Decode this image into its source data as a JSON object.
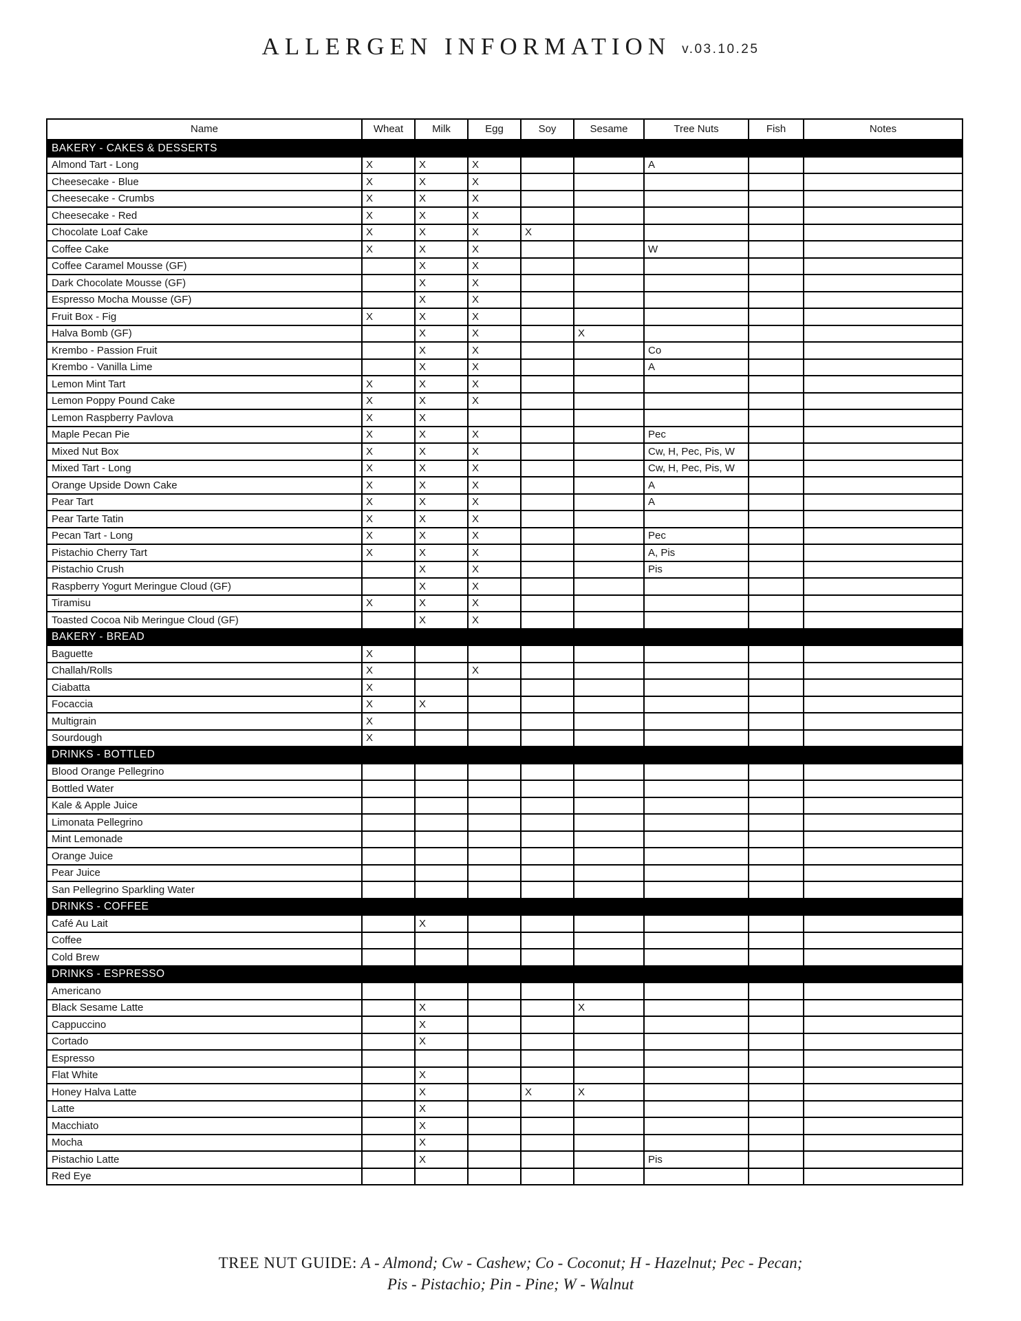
{
  "title": {
    "main": "ALLERGEN INFORMATION",
    "version": "v.03.10.25"
  },
  "table": {
    "columns": [
      "Name",
      "Wheat",
      "Milk",
      "Egg",
      "Soy",
      "Sesame",
      "Tree Nuts",
      "Fish",
      "Notes"
    ],
    "sections": [
      {
        "label": "BAKERY - CAKES & DESSERTS",
        "rows": [
          [
            "Almond Tart - Long",
            "X",
            "X",
            "X",
            "",
            "",
            "A",
            "",
            ""
          ],
          [
            "Cheesecake - Blue",
            "X",
            "X",
            "X",
            "",
            "",
            "",
            "",
            ""
          ],
          [
            "Cheesecake - Crumbs",
            "X",
            "X",
            "X",
            "",
            "",
            "",
            "",
            ""
          ],
          [
            "Cheesecake - Red",
            "X",
            "X",
            "X",
            "",
            "",
            "",
            "",
            ""
          ],
          [
            "Chocolate Loaf Cake",
            "X",
            "X",
            "X",
            "X",
            "",
            "",
            "",
            ""
          ],
          [
            "Coffee Cake",
            "X",
            "X",
            "X",
            "",
            "",
            "W",
            "",
            ""
          ],
          [
            "Coffee Caramel Mousse (GF)",
            "",
            "X",
            "X",
            "",
            "",
            "",
            "",
            ""
          ],
          [
            "Dark Chocolate Mousse (GF)",
            "",
            "X",
            "X",
            "",
            "",
            "",
            "",
            ""
          ],
          [
            "Espresso Mocha Mousse (GF)",
            "",
            "X",
            "X",
            "",
            "",
            "",
            "",
            ""
          ],
          [
            "Fruit Box - Fig",
            "X",
            "X",
            "X",
            "",
            "",
            "",
            "",
            ""
          ],
          [
            "Halva Bomb (GF)",
            "",
            "X",
            "X",
            "",
            "X",
            "",
            "",
            ""
          ],
          [
            "Krembo - Passion Fruit",
            "",
            "X",
            "X",
            "",
            "",
            "Co",
            "",
            ""
          ],
          [
            "Krembo - Vanilla Lime",
            "",
            "X",
            "X",
            "",
            "",
            "A",
            "",
            ""
          ],
          [
            "Lemon Mint Tart",
            "X",
            "X",
            "X",
            "",
            "",
            "",
            "",
            ""
          ],
          [
            "Lemon Poppy Pound Cake",
            "X",
            "X",
            "X",
            "",
            "",
            "",
            "",
            ""
          ],
          [
            "Lemon Raspberry Pavlova",
            "X",
            "X",
            "",
            "",
            "",
            "",
            "",
            ""
          ],
          [
            "Maple Pecan Pie",
            "X",
            "X",
            "X",
            "",
            "",
            "Pec",
            "",
            ""
          ],
          [
            "Mixed Nut Box",
            "X",
            "X",
            "X",
            "",
            "",
            "Cw, H, Pec, Pis, W",
            "",
            ""
          ],
          [
            "Mixed Tart - Long",
            "X",
            "X",
            "X",
            "",
            "",
            "Cw, H, Pec, Pis, W",
            "",
            ""
          ],
          [
            "Orange Upside Down Cake",
            "X",
            "X",
            "X",
            "",
            "",
            "A",
            "",
            ""
          ],
          [
            "Pear Tart",
            "X",
            "X",
            "X",
            "",
            "",
            "A",
            "",
            ""
          ],
          [
            "Pear Tarte Tatin",
            "X",
            "X",
            "X",
            "",
            "",
            "",
            "",
            ""
          ],
          [
            "Pecan Tart - Long",
            "X",
            "X",
            "X",
            "",
            "",
            "Pec",
            "",
            ""
          ],
          [
            "Pistachio Cherry Tart",
            "X",
            "X",
            "X",
            "",
            "",
            "A, Pis",
            "",
            ""
          ],
          [
            "Pistachio Crush",
            "",
            "X",
            "X",
            "",
            "",
            "Pis",
            "",
            ""
          ],
          [
            "Raspberry Yogurt Meringue Cloud (GF)",
            "",
            "X",
            "X",
            "",
            "",
            "",
            "",
            ""
          ],
          [
            "Tiramisu",
            "X",
            "X",
            "X",
            "",
            "",
            "",
            "",
            ""
          ],
          [
            "Toasted Cocoa Nib Meringue Cloud (GF)",
            "",
            "X",
            "X",
            "",
            "",
            "",
            "",
            ""
          ]
        ]
      },
      {
        "label": "BAKERY - BREAD",
        "rows": [
          [
            "Baguette",
            "X",
            "",
            "",
            "",
            "",
            "",
            "",
            ""
          ],
          [
            "Challah/Rolls",
            "X",
            "",
            "X",
            "",
            "",
            "",
            "",
            ""
          ],
          [
            "Ciabatta",
            "X",
            "",
            "",
            "",
            "",
            "",
            "",
            ""
          ],
          [
            "Focaccia",
            "X",
            "X",
            "",
            "",
            "",
            "",
            "",
            ""
          ],
          [
            "Multigrain",
            "X",
            "",
            "",
            "",
            "",
            "",
            "",
            ""
          ],
          [
            "Sourdough",
            "X",
            "",
            "",
            "",
            "",
            "",
            "",
            ""
          ]
        ]
      },
      {
        "label": "DRINKS - BOTTLED",
        "rows": [
          [
            "Blood Orange Pellegrino",
            "",
            "",
            "",
            "",
            "",
            "",
            "",
            ""
          ],
          [
            "Bottled Water",
            "",
            "",
            "",
            "",
            "",
            "",
            "",
            ""
          ],
          [
            "Kale & Apple Juice",
            "",
            "",
            "",
            "",
            "",
            "",
            "",
            ""
          ],
          [
            "Limonata Pellegrino",
            "",
            "",
            "",
            "",
            "",
            "",
            "",
            ""
          ],
          [
            "Mint Lemonade",
            "",
            "",
            "",
            "",
            "",
            "",
            "",
            ""
          ],
          [
            "Orange Juice",
            "",
            "",
            "",
            "",
            "",
            "",
            "",
            ""
          ],
          [
            "Pear Juice",
            "",
            "",
            "",
            "",
            "",
            "",
            "",
            ""
          ],
          [
            "San Pellegrino Sparkling Water",
            "",
            "",
            "",
            "",
            "",
            "",
            "",
            ""
          ]
        ]
      },
      {
        "label": "DRINKS - COFFEE",
        "rows": [
          [
            "Café Au Lait",
            "",
            "X",
            "",
            "",
            "",
            "",
            "",
            ""
          ],
          [
            "Coffee",
            "",
            "",
            "",
            "",
            "",
            "",
            "",
            ""
          ],
          [
            "Cold Brew",
            "",
            "",
            "",
            "",
            "",
            "",
            "",
            ""
          ]
        ]
      },
      {
        "label": "DRINKS - ESPRESSO",
        "rows": [
          [
            "Americano",
            "",
            "",
            "",
            "",
            "",
            "",
            "",
            ""
          ],
          [
            "Black Sesame Latte",
            "",
            "X",
            "",
            "",
            "X",
            "",
            "",
            ""
          ],
          [
            "Cappuccino",
            "",
            "X",
            "",
            "",
            "",
            "",
            "",
            ""
          ],
          [
            "Cortado",
            "",
            "X",
            "",
            "",
            "",
            "",
            "",
            ""
          ],
          [
            "Espresso",
            "",
            "",
            "",
            "",
            "",
            "",
            "",
            ""
          ],
          [
            "Flat White",
            "",
            "X",
            "",
            "",
            "",
            "",
            "",
            ""
          ],
          [
            "Honey Halva Latte",
            "",
            "X",
            "",
            "X",
            "X",
            "",
            "",
            ""
          ],
          [
            "Latte",
            "",
            "X",
            "",
            "",
            "",
            "",
            "",
            ""
          ],
          [
            "Macchiato",
            "",
            "X",
            "",
            "",
            "",
            "",
            "",
            ""
          ],
          [
            "Mocha",
            "",
            "X",
            "",
            "",
            "",
            "",
            "",
            ""
          ],
          [
            "Pistachio Latte",
            "",
            "X",
            "",
            "",
            "",
            "Pis",
            "",
            ""
          ],
          [
            "Red Eye",
            "",
            "",
            "",
            "",
            "",
            "",
            "",
            ""
          ]
        ]
      }
    ]
  },
  "footer": {
    "guide_label": "TREE NUT GUIDE:",
    "guide_line1": "A - Almond; Cw - Cashew; Co - Coconut; H - Hazelnut; Pec - Pecan;",
    "guide_line2": "Pis - Pistachio; Pin - Pine; W - Walnut"
  }
}
